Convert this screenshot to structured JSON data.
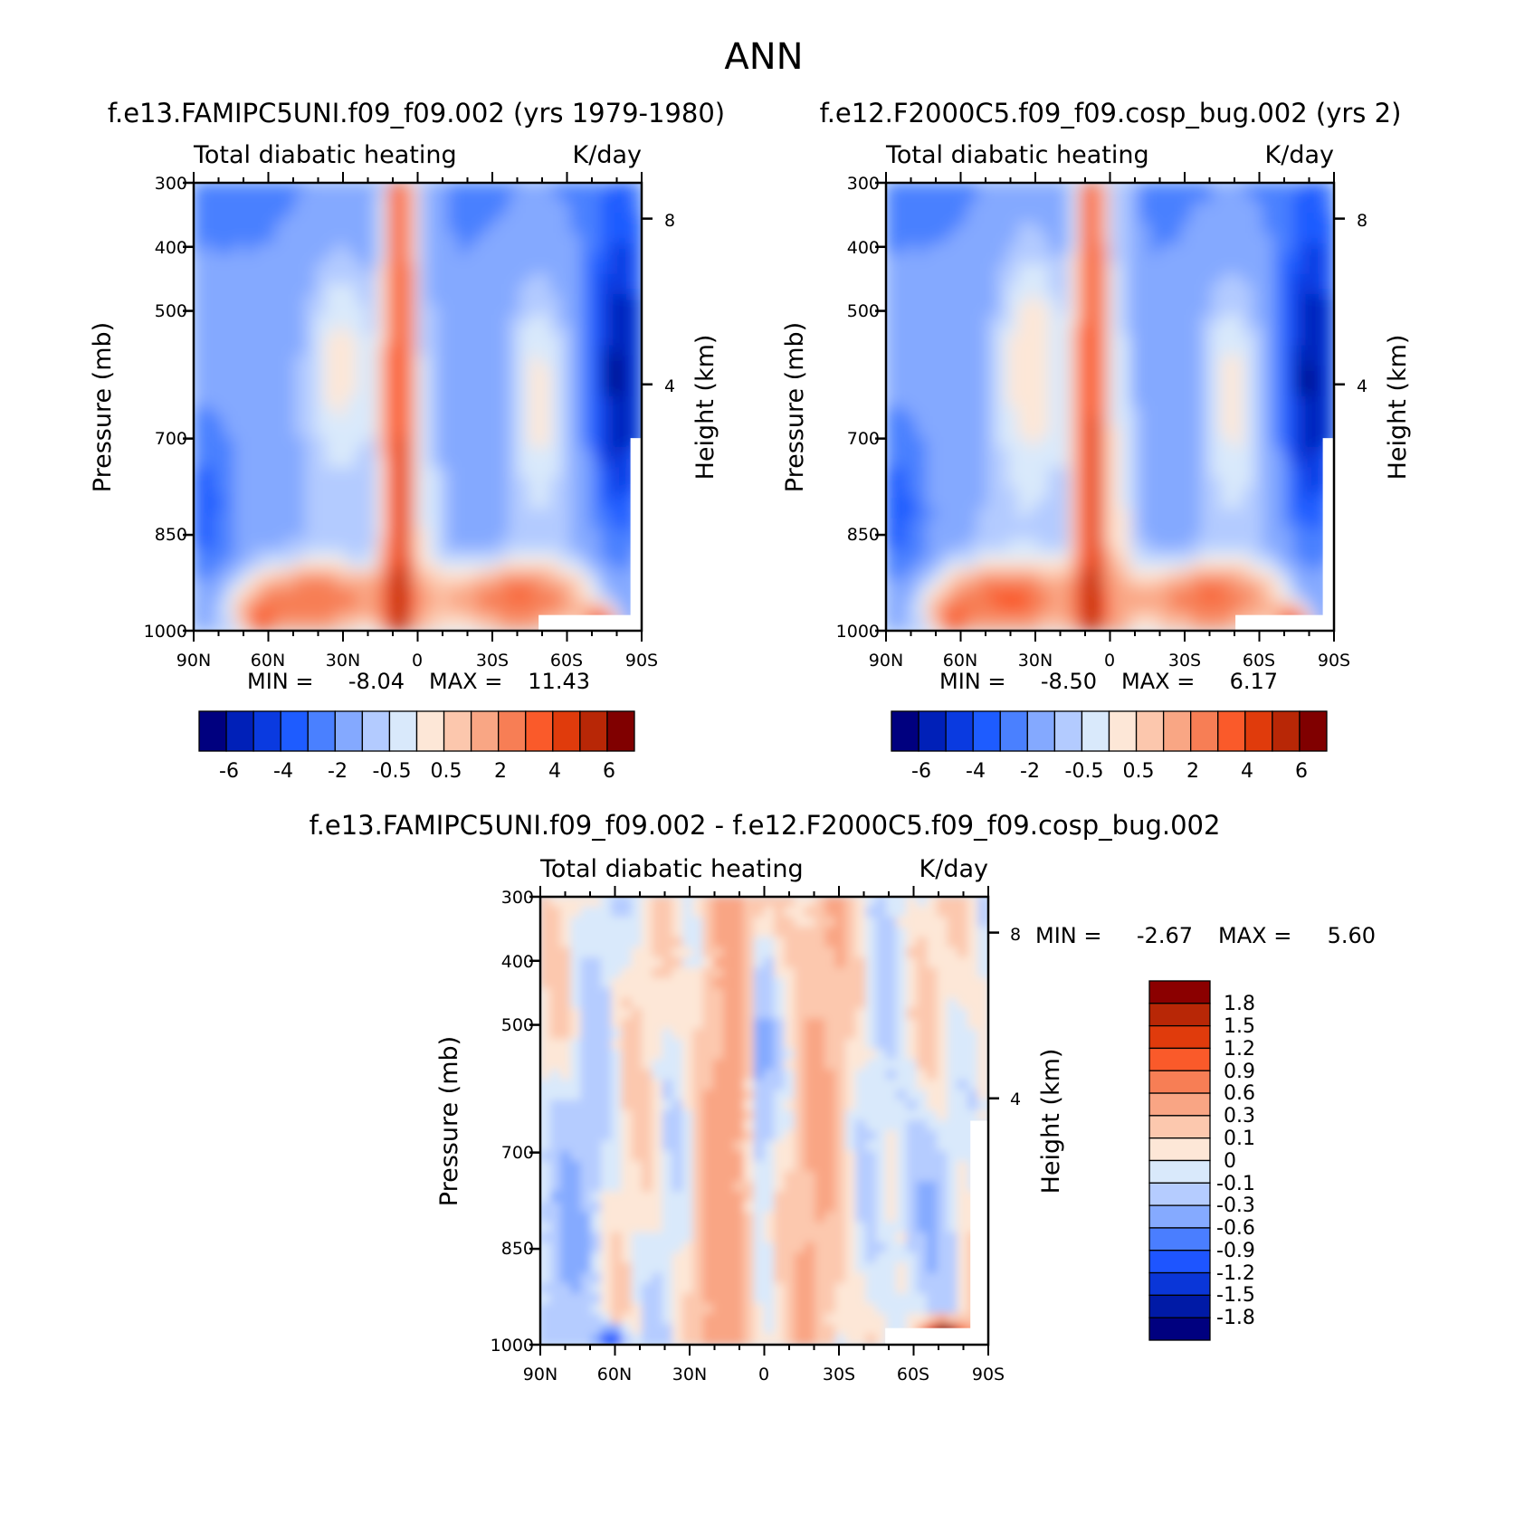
{
  "figure": {
    "title": "ANN"
  },
  "palettes": {
    "main_colors": [
      "#00007f",
      "#0020b8",
      "#0a3ae0",
      "#1e5cff",
      "#4a80ff",
      "#84a9ff",
      "#b3cbff",
      "#d9e9fb",
      "#fde7d7",
      "#fcc7ad",
      "#f9a684",
      "#f77e55",
      "#fa5a2a",
      "#e03b0c",
      "#b82706",
      "#800000"
    ],
    "diff_colors": [
      "#00007f",
      "#001aa6",
      "#0a36d8",
      "#1e55ff",
      "#4a7eff",
      "#85aaff",
      "#b5ccff",
      "#d9e9fb",
      "#fde7d7",
      "#fcc8ae",
      "#f9a584",
      "#f77e55",
      "#fa5a2a",
      "#e03b0c",
      "#b82706",
      "#8b0000"
    ]
  },
  "chart_data": [
    {
      "id": "panel-left",
      "type": "heatmap",
      "title": "f.e13.FAMIPC5UNI.f09_f09.002 (yrs 1979-1980)",
      "variable": "Total diabatic heating",
      "units": "K/day",
      "xlabel": "",
      "ylabel": "Pressure (mb)",
      "ylabel_right": "Height (km)",
      "x_ticks": [
        "90N",
        "60N",
        "30N",
        "0",
        "30S",
        "60S",
        "90S"
      ],
      "y_ticks": [
        "300",
        "400",
        "500",
        "700",
        "850",
        "1000"
      ],
      "y_ticks_right": [
        "8",
        "4"
      ],
      "min_label": "MIN =",
      "min_value": "-8.04",
      "max_label": "MAX =",
      "max_value": "11.43",
      "colorbar_labels": [
        "-6",
        "-4",
        "-2",
        "-0.5",
        "0.5",
        "2",
        "4",
        "6"
      ]
    },
    {
      "id": "panel-right",
      "type": "heatmap",
      "title": "f.e12.F2000C5.f09_f09.cosp_bug.002 (yrs 2)",
      "variable": "Total diabatic heating",
      "units": "K/day",
      "xlabel": "",
      "ylabel": "Pressure (mb)",
      "ylabel_right": "Height (km)",
      "x_ticks": [
        "90N",
        "60N",
        "30N",
        "0",
        "30S",
        "60S",
        "90S"
      ],
      "y_ticks": [
        "300",
        "400",
        "500",
        "700",
        "850",
        "1000"
      ],
      "y_ticks_right": [
        "8",
        "4"
      ],
      "min_label": "MIN =",
      "min_value": "-8.50",
      "max_label": "MAX =",
      "max_value": "6.17",
      "colorbar_labels": [
        "-6",
        "-4",
        "-2",
        "-0.5",
        "0.5",
        "2",
        "4",
        "6"
      ]
    },
    {
      "id": "panel-diff",
      "type": "heatmap",
      "title": "f.e13.FAMIPC5UNI.f09_f09.002 - f.e12.F2000C5.f09_f09.cosp_bug.002",
      "variable": "Total diabatic heating",
      "units": "K/day",
      "xlabel": "",
      "ylabel": "Pressure (mb)",
      "ylabel_right": "Height (km)",
      "x_ticks": [
        "90N",
        "60N",
        "30N",
        "0",
        "30S",
        "60S",
        "90S"
      ],
      "y_ticks": [
        "300",
        "400",
        "500",
        "700",
        "850",
        "1000"
      ],
      "y_ticks_right": [
        "8",
        "4"
      ],
      "min_label": "MIN =",
      "min_value": "-2.67",
      "max_label": "MAX =",
      "max_value": "5.60",
      "colorbar_labels": [
        "1.8",
        "1.5",
        "1.2",
        "0.9",
        "0.6",
        "0.3",
        "0.1",
        "0",
        "-0.1",
        "-0.3",
        "-0.6",
        "-0.9",
        "-1.2",
        "-1.5",
        "-1.8"
      ]
    }
  ]
}
